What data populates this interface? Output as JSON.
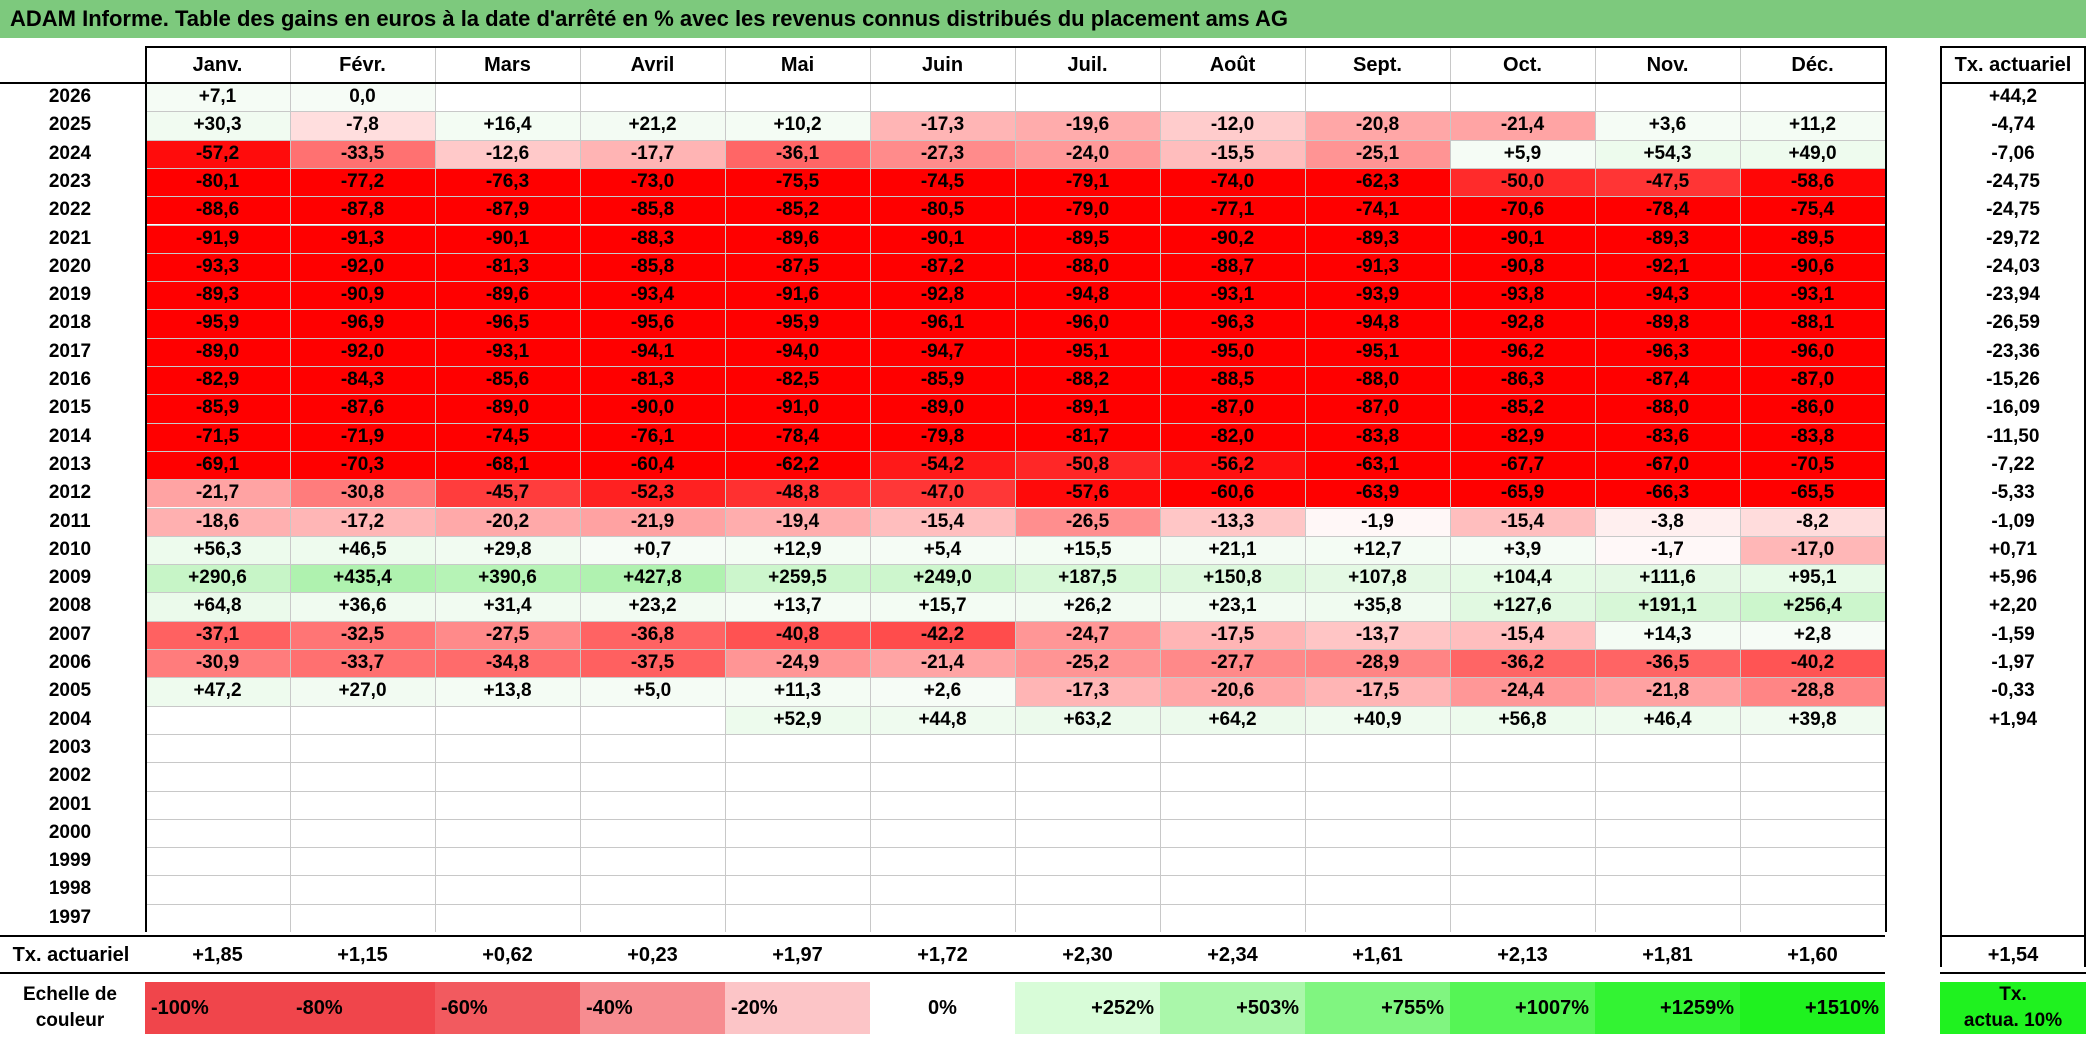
{
  "title": "ADAM Informe. Table des gains en euros à la date d'arrêté en % avec les revenus connus distribués du placement ams AG",
  "months": [
    "Janv.",
    "Févr.",
    "Mars",
    "Avril",
    "Mai",
    "Juin",
    "Juil.",
    "Août",
    "Sept.",
    "Oct.",
    "Nov.",
    "Déc."
  ],
  "annual_header": "Tx. actuariel",
  "rows": [
    {
      "year": "2026",
      "values": [
        "+7,1",
        "0,0",
        "",
        "",
        "",
        "",
        "",
        "",
        "",
        "",
        "",
        ""
      ],
      "annual": "+44,2"
    },
    {
      "year": "2025",
      "values": [
        "+30,3",
        "-7,8",
        "+16,4",
        "+21,2",
        "+10,2",
        "-17,3",
        "-19,6",
        "-12,0",
        "-20,8",
        "-21,4",
        "+3,6",
        "+11,2"
      ],
      "annual": "-4,74"
    },
    {
      "year": "2024",
      "values": [
        "-57,2",
        "-33,5",
        "-12,6",
        "-17,7",
        "-36,1",
        "-27,3",
        "-24,0",
        "-15,5",
        "-25,1",
        "+5,9",
        "+54,3",
        "+49,0"
      ],
      "annual": "-7,06"
    },
    {
      "year": "2023",
      "values": [
        "-80,1",
        "-77,2",
        "-76,3",
        "-73,0",
        "-75,5",
        "-74,5",
        "-79,1",
        "-74,0",
        "-62,3",
        "-50,0",
        "-47,5",
        "-58,6"
      ],
      "annual": "-24,75"
    },
    {
      "year": "2022",
      "values": [
        "-88,6",
        "-87,8",
        "-87,9",
        "-85,8",
        "-85,2",
        "-80,5",
        "-79,0",
        "-77,1",
        "-74,1",
        "-70,6",
        "-78,4",
        "-75,4"
      ],
      "annual": "-24,75"
    },
    {
      "year": "2021",
      "values": [
        "-91,9",
        "-91,3",
        "-90,1",
        "-88,3",
        "-89,6",
        "-90,1",
        "-89,5",
        "-90,2",
        "-89,3",
        "-90,1",
        "-89,3",
        "-89,5"
      ],
      "annual": "-29,72"
    },
    {
      "year": "2020",
      "values": [
        "-93,3",
        "-92,0",
        "-81,3",
        "-85,8",
        "-87,5",
        "-87,2",
        "-88,0",
        "-88,7",
        "-91,3",
        "-90,8",
        "-92,1",
        "-90,6"
      ],
      "annual": "-24,03"
    },
    {
      "year": "2019",
      "values": [
        "-89,3",
        "-90,9",
        "-89,6",
        "-93,4",
        "-91,6",
        "-92,8",
        "-94,8",
        "-93,1",
        "-93,9",
        "-93,8",
        "-94,3",
        "-93,1"
      ],
      "annual": "-23,94"
    },
    {
      "year": "2018",
      "values": [
        "-95,9",
        "-96,9",
        "-96,5",
        "-95,6",
        "-95,9",
        "-96,1",
        "-96,0",
        "-96,3",
        "-94,8",
        "-92,8",
        "-89,8",
        "-88,1"
      ],
      "annual": "-26,59"
    },
    {
      "year": "2017",
      "values": [
        "-89,0",
        "-92,0",
        "-93,1",
        "-94,1",
        "-94,0",
        "-94,7",
        "-95,1",
        "-95,0",
        "-95,1",
        "-96,2",
        "-96,3",
        "-96,0"
      ],
      "annual": "-23,36"
    },
    {
      "year": "2016",
      "values": [
        "-82,9",
        "-84,3",
        "-85,6",
        "-81,3",
        "-82,5",
        "-85,9",
        "-88,2",
        "-88,5",
        "-88,0",
        "-86,3",
        "-87,4",
        "-87,0"
      ],
      "annual": "-15,26"
    },
    {
      "year": "2015",
      "values": [
        "-85,9",
        "-87,6",
        "-89,0",
        "-90,0",
        "-91,0",
        "-89,0",
        "-89,1",
        "-87,0",
        "-87,0",
        "-85,2",
        "-88,0",
        "-86,0"
      ],
      "annual": "-16,09"
    },
    {
      "year": "2014",
      "values": [
        "-71,5",
        "-71,9",
        "-74,5",
        "-76,1",
        "-78,4",
        "-79,8",
        "-81,7",
        "-82,0",
        "-83,8",
        "-82,9",
        "-83,6",
        "-83,8"
      ],
      "annual": "-11,50"
    },
    {
      "year": "2013",
      "values": [
        "-69,1",
        "-70,3",
        "-68,1",
        "-60,4",
        "-62,2",
        "-54,2",
        "-50,8",
        "-56,2",
        "-63,1",
        "-67,7",
        "-67,0",
        "-70,5"
      ],
      "annual": "-7,22"
    },
    {
      "year": "2012",
      "values": [
        "-21,7",
        "-30,8",
        "-45,7",
        "-52,3",
        "-48,8",
        "-47,0",
        "-57,6",
        "-60,6",
        "-63,9",
        "-65,9",
        "-66,3",
        "-65,5"
      ],
      "annual": "-5,33"
    },
    {
      "year": "2011",
      "values": [
        "-18,6",
        "-17,2",
        "-20,2",
        "-21,9",
        "-19,4",
        "-15,4",
        "-26,5",
        "-13,3",
        "-1,9",
        "-15,4",
        "-3,8",
        "-8,2"
      ],
      "annual": "-1,09"
    },
    {
      "year": "2010",
      "values": [
        "+56,3",
        "+46,5",
        "+29,8",
        "+0,7",
        "+12,9",
        "+5,4",
        "+15,5",
        "+21,1",
        "+12,7",
        "+3,9",
        "-1,7",
        "-17,0"
      ],
      "annual": "+0,71"
    },
    {
      "year": "2009",
      "values": [
        "+290,6",
        "+435,4",
        "+390,6",
        "+427,8",
        "+259,5",
        "+249,0",
        "+187,5",
        "+150,8",
        "+107,8",
        "+104,4",
        "+111,6",
        "+95,1"
      ],
      "annual": "+5,96"
    },
    {
      "year": "2008",
      "values": [
        "+64,8",
        "+36,6",
        "+31,4",
        "+23,2",
        "+13,7",
        "+15,7",
        "+26,2",
        "+23,1",
        "+35,8",
        "+127,6",
        "+191,1",
        "+256,4"
      ],
      "annual": "+2,20"
    },
    {
      "year": "2007",
      "values": [
        "-37,1",
        "-32,5",
        "-27,5",
        "-36,8",
        "-40,8",
        "-42,2",
        "-24,7",
        "-17,5",
        "-13,7",
        "-15,4",
        "+14,3",
        "+2,8"
      ],
      "annual": "-1,59"
    },
    {
      "year": "2006",
      "values": [
        "-30,9",
        "-33,7",
        "-34,8",
        "-37,5",
        "-24,9",
        "-21,4",
        "-25,2",
        "-27,7",
        "-28,9",
        "-36,2",
        "-36,5",
        "-40,2"
      ],
      "annual": "-1,97"
    },
    {
      "year": "2005",
      "values": [
        "+47,2",
        "+27,0",
        "+13,8",
        "+5,0",
        "+11,3",
        "+2,6",
        "-17,3",
        "-20,6",
        "-17,5",
        "-24,4",
        "-21,8",
        "-28,8"
      ],
      "annual": "-0,33"
    },
    {
      "year": "2004",
      "values": [
        "",
        "",
        "",
        "",
        "+52,9",
        "+44,8",
        "+63,2",
        "+64,2",
        "+40,9",
        "+56,8",
        "+46,4",
        "+39,8"
      ],
      "annual": "+1,94"
    },
    {
      "year": "2003",
      "values": [
        "",
        "",
        "",
        "",
        "",
        "",
        "",
        "",
        "",
        "",
        "",
        ""
      ],
      "annual": ""
    },
    {
      "year": "2002",
      "values": [
        "",
        "",
        "",
        "",
        "",
        "",
        "",
        "",
        "",
        "",
        "",
        ""
      ],
      "annual": ""
    },
    {
      "year": "2001",
      "values": [
        "",
        "",
        "",
        "",
        "",
        "",
        "",
        "",
        "",
        "",
        "",
        ""
      ],
      "annual": ""
    },
    {
      "year": "2000",
      "values": [
        "",
        "",
        "",
        "",
        "",
        "",
        "",
        "",
        "",
        "",
        "",
        ""
      ],
      "annual": ""
    },
    {
      "year": "1999",
      "values": [
        "",
        "",
        "",
        "",
        "",
        "",
        "",
        "",
        "",
        "",
        "",
        ""
      ],
      "annual": ""
    },
    {
      "year": "1998",
      "values": [
        "",
        "",
        "",
        "",
        "",
        "",
        "",
        "",
        "",
        "",
        "",
        ""
      ],
      "annual": ""
    },
    {
      "year": "1997",
      "values": [
        "",
        "",
        "",
        "",
        "",
        "",
        "",
        "",
        "",
        "",
        "",
        ""
      ],
      "annual": ""
    }
  ],
  "footer": {
    "label": "Tx. actuariel",
    "values": [
      "+1,85",
      "+1,15",
      "+0,62",
      "+0,23",
      "+1,97",
      "+1,72",
      "+2,30",
      "+2,34",
      "+1,61",
      "+2,13",
      "+1,81",
      "+1,60"
    ],
    "annual": "+1,54"
  },
  "scale": {
    "label_line1": "Echelle de",
    "label_line2": "couleur",
    "steps": [
      {
        "label": "-100%",
        "color": "#f0454b",
        "align": "left"
      },
      {
        "label": "-80%",
        "color": "#f0454b",
        "align": "left"
      },
      {
        "label": "-60%",
        "color": "#f25a5f",
        "align": "left"
      },
      {
        "label": "-40%",
        "color": "#f78c90",
        "align": "left"
      },
      {
        "label": "-20%",
        "color": "#fcc5c7",
        "align": "left"
      },
      {
        "label": "0%",
        "color": "#ffffff",
        "align": "center"
      },
      {
        "label": "+252%",
        "color": "#d8fcd8",
        "align": "right"
      },
      {
        "label": "+503%",
        "color": "#aaf7aa",
        "align": "right"
      },
      {
        "label": "+755%",
        "color": "#80f580",
        "align": "right"
      },
      {
        "label": "+1007%",
        "color": "#55f555",
        "align": "right"
      },
      {
        "label": "+1259%",
        "color": "#33f333",
        "align": "right"
      },
      {
        "label": "+1510%",
        "color": "#1ff21f",
        "align": "right"
      }
    ],
    "annual_line1": "Tx.",
    "annual_line2": "actua. 10%",
    "annual_color": "#1ff21f"
  },
  "colors": {
    "title_bg": "#7dc97d",
    "neg_full": "#ff0000",
    "pos_full": "#00d800"
  }
}
